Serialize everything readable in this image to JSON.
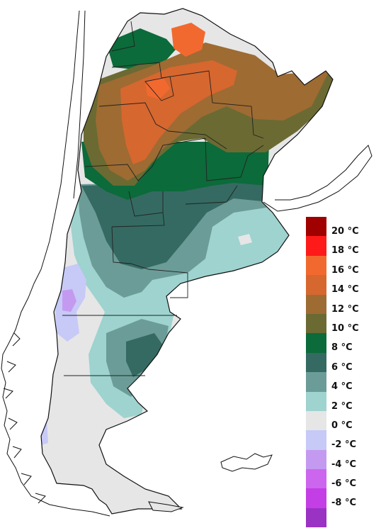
{
  "legend": {
    "entries": [
      {
        "label": "20 °C",
        "color": "#a00000"
      },
      {
        "label": "18 °C",
        "color": "#ff1a1a"
      },
      {
        "label": "16 °C",
        "color": "#f2692f"
      },
      {
        "label": "14 °C",
        "color": "#d6672f"
      },
      {
        "label": "12 °C",
        "color": "#9e6b33"
      },
      {
        "label": "10 °C",
        "color": "#6b6a33"
      },
      {
        "label": "8 °C",
        "color": "#0b6b3a"
      },
      {
        "label": "6 °C",
        "color": "#356a62"
      },
      {
        "label": "4 °C",
        "color": "#6c9c97"
      },
      {
        "label": "2 °C",
        "color": "#9ed3cf"
      },
      {
        "label": "0 °C",
        "color": "#e6e6e6"
      },
      {
        "label": "-2 °C",
        "color": "#c7c9f7"
      },
      {
        "label": "-4 °C",
        "color": "#c49af0"
      },
      {
        "label": "-6 °C",
        "color": "#cc66ee"
      },
      {
        "label": "-8 °C",
        "color": "#c43ee6"
      },
      {
        "label": "",
        "color": "#9a32c4"
      }
    ]
  },
  "map_colors": {
    "zero": "#e6e6e6",
    "two": "#9ed3cf",
    "four": "#6c9c97",
    "six": "#356a62",
    "eight": "#0b6b3a",
    "ten": "#6b6a33",
    "twelve": "#9e6b33",
    "fourteen": "#d6672f",
    "sixteen": "#f2692f",
    "minus_two": "#c7c9f7",
    "minus_four": "#c49af0"
  }
}
